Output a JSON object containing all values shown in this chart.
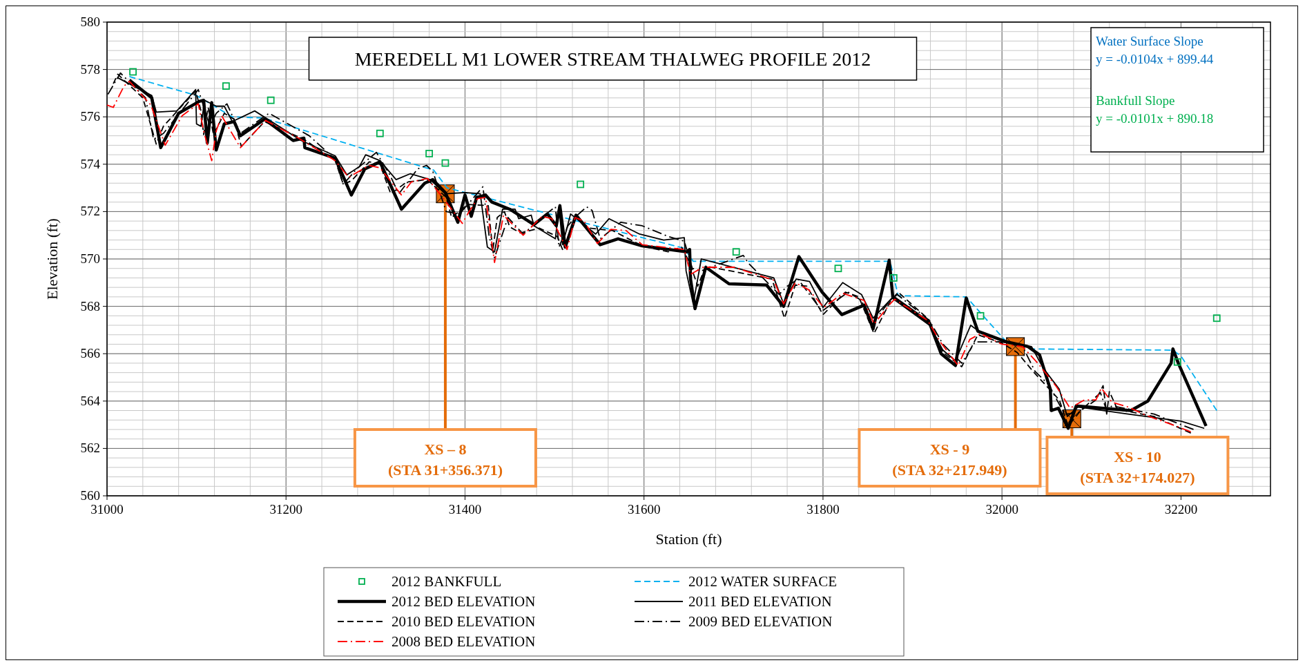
{
  "chart_data": {
    "type": "line",
    "title": "MEREDELL M1 LOWER STREAM THALWEG PROFILE 2012",
    "xlabel": "Station (ft)",
    "ylabel": "Elevation (ft)",
    "xlim": [
      31000,
      32300
    ],
    "xticks": [
      31000,
      31200,
      31400,
      31600,
      31800,
      32000,
      32200
    ],
    "ylim": [
      560,
      580
    ],
    "yticks": [
      560,
      562,
      564,
      566,
      568,
      570,
      572,
      574,
      576,
      578,
      580
    ],
    "grid": true,
    "legend": "bottom",
    "annotations": [
      "Water Surface Slope\ny = -0.0104x + 899.44",
      "Bankfull Slope\ny = -0.0101x + 890.18",
      {
        "text": "XS – 8\n(STA 31+356.371)",
        "x": 31378,
        "y": 572.75
      },
      {
        "text": "XS - 9\n(STA 32+217.949)",
        "x": 32015,
        "y": 566.3
      },
      {
        "text": "XS - 10\n(STA 32+174.027)",
        "x": 32078,
        "y": 563.25
      }
    ],
    "series": [
      {
        "name": "2012 BANKFULL",
        "type": "scatter",
        "marker": "square",
        "color": "#00b050",
        "x": [
          31029,
          31133,
          31183,
          31305,
          31360,
          31378,
          31529,
          31703,
          31817,
          31879,
          31976,
          32196,
          32240
        ],
        "values": [
          577.9,
          577.3,
          576.7,
          575.3,
          574.45,
          574.05,
          573.15,
          570.3,
          569.6,
          569.2,
          567.6,
          565.65,
          567.5
        ]
      },
      {
        "name": "2012 WATER SURFACE",
        "line_style": "dashed",
        "color": "#00b0f0",
        "x": [
          31025,
          31100,
          31140,
          31175,
          31365,
          31380,
          31645,
          31655,
          31875,
          31884,
          31960,
          32005,
          32035,
          32191,
          32200,
          32240
        ],
        "values": [
          577.7,
          576.9,
          576.0,
          575.95,
          573.75,
          573.0,
          570.45,
          569.9,
          569.9,
          568.45,
          568.4,
          566.5,
          566.2,
          566.15,
          565.9,
          563.6
        ]
      },
      {
        "name": "2012 BED ELEVATION",
        "line_style": "solid",
        "color": "#000000",
        "x": [
          31025,
          31050,
          31060,
          31080,
          31103,
          31108,
          31112,
          31117,
          31122,
          31131,
          31142,
          31149,
          31176,
          31208,
          31220,
          31221,
          31255,
          31273,
          31288,
          31305,
          31329,
          31355,
          31364,
          31378,
          31392,
          31400,
          31407,
          31413,
          31423,
          31430,
          31450,
          31477,
          31492,
          31502,
          31506,
          31512,
          31524,
          31551,
          31571,
          31598,
          31648,
          31651,
          31652,
          31657,
          31669,
          31695,
          31737,
          31756,
          31773,
          31799,
          31821,
          31846,
          31856,
          31874,
          31878,
          31919,
          31932,
          31948,
          31960,
          31973,
          32005,
          32029,
          32042,
          32054,
          32055,
          32063,
          32074,
          32083,
          32111,
          32144,
          32163,
          32189,
          32191,
          32197,
          32228
        ],
        "values": [
          577.55,
          576.8,
          574.7,
          576.15,
          576.65,
          576.7,
          574.9,
          576.6,
          574.6,
          575.7,
          575.8,
          575.2,
          575.9,
          575.0,
          575.1,
          574.7,
          574.25,
          572.7,
          573.8,
          574.1,
          572.1,
          573.2,
          573.35,
          572.8,
          571.55,
          572.7,
          571.8,
          572.6,
          572.7,
          572.4,
          572.1,
          571.45,
          571.9,
          571.4,
          572.25,
          570.5,
          571.85,
          570.6,
          570.85,
          570.55,
          570.3,
          570.4,
          569.15,
          567.9,
          569.65,
          568.95,
          568.9,
          568.0,
          570.1,
          568.6,
          567.65,
          568.05,
          567.05,
          569.95,
          568.4,
          567.3,
          566.0,
          565.5,
          568.35,
          566.95,
          566.5,
          566.3,
          565.95,
          564.5,
          563.6,
          563.7,
          562.85,
          563.8,
          563.7,
          563.6,
          564.0,
          565.6,
          566.2,
          565.6,
          562.95
        ]
      },
      {
        "name": "2011 BED ELEVATION",
        "line_style": "solid",
        "color": "#000000",
        "x": [
          31012,
          31050,
          31055,
          31078,
          31099,
          31100,
          31105,
          31109,
          31122,
          31131,
          31140,
          31165,
          31217,
          31255,
          31268,
          31282,
          31289,
          31305,
          31323,
          31339,
          31361,
          31378,
          31400,
          31417,
          31425,
          31433,
          31442,
          31456,
          31460,
          31474,
          31477,
          31501,
          31505,
          31509,
          31518,
          31546,
          31561,
          31595,
          31622,
          31645,
          31647,
          31655,
          31664,
          31745,
          31756,
          31770,
          31785,
          31800,
          31822,
          31843,
          31856,
          31877,
          31919,
          31934,
          31948,
          31965,
          31974,
          32005,
          32033,
          32046,
          32064,
          32073,
          32085,
          32141,
          32200,
          32226
        ],
        "values": [
          577.65,
          576.9,
          576.2,
          576.25,
          577.15,
          575.7,
          575.6,
          576.7,
          576.45,
          576.45,
          575.8,
          576.25,
          575.0,
          574.35,
          573.55,
          573.9,
          574.4,
          574.15,
          573.35,
          573.6,
          573.35,
          572.75,
          572.8,
          572.75,
          570.5,
          570.3,
          572.1,
          572.1,
          571.7,
          571.85,
          571.4,
          570.85,
          572.2,
          570.6,
          571.9,
          571.05,
          571.7,
          571.05,
          570.8,
          570.9,
          569.5,
          568.1,
          570.0,
          569.2,
          568.1,
          569.15,
          569.05,
          567.95,
          569.0,
          568.5,
          567.5,
          568.35,
          567.2,
          566.15,
          565.7,
          567.2,
          566.95,
          566.5,
          566.3,
          565.4,
          564.5,
          563.35,
          563.75,
          563.45,
          563.15,
          562.85
        ]
      },
      {
        "name": "2010 BED ELEVATION",
        "line_style": "dashed",
        "color": "#000000",
        "x": [
          31007,
          31012,
          31040,
          31055,
          31063,
          31099,
          31105,
          31108,
          31113,
          31119,
          31131,
          31142,
          31150,
          31176,
          31220,
          31255,
          31264,
          31273,
          31293,
          31305,
          31317,
          31335,
          31358,
          31379,
          31385,
          31403,
          31426,
          31431,
          31436,
          31444,
          31450,
          31462,
          31483,
          31503,
          31509,
          31524,
          31539,
          31565,
          31598,
          31627,
          31642,
          31651,
          31660,
          31669,
          31716,
          31743,
          31757,
          31769,
          31782,
          31800,
          31825,
          31840,
          31857,
          31875,
          31884,
          31918,
          31934,
          31955,
          31973,
          32000,
          32017,
          32036,
          32064,
          32074,
          32088,
          32105,
          32113,
          32117,
          32120,
          32129,
          32170,
          32211
        ],
        "values": [
          577.4,
          577.8,
          576.8,
          574.85,
          575.6,
          577.1,
          576.25,
          575.25,
          576.4,
          575.25,
          576.15,
          575.9,
          574.75,
          575.8,
          575.05,
          574.15,
          573.15,
          573.3,
          574.1,
          574.0,
          572.75,
          573.25,
          573.35,
          572.6,
          571.75,
          572.3,
          572.25,
          570.35,
          571.75,
          572.0,
          571.35,
          571.1,
          571.3,
          570.95,
          570.4,
          571.75,
          571.3,
          571.2,
          570.55,
          570.3,
          570.5,
          569.85,
          568.85,
          569.7,
          569.35,
          569.15,
          567.5,
          568.9,
          568.85,
          567.65,
          568.6,
          568.4,
          566.85,
          568.2,
          568.6,
          567.45,
          566.05,
          565.45,
          566.8,
          566.45,
          566.05,
          565.2,
          564.05,
          562.95,
          563.6,
          564.05,
          564.65,
          563.45,
          564.4,
          563.65,
          563.35,
          562.65
        ]
      },
      {
        "name": "2009 BED ELEVATION",
        "line_style": "dashdot",
        "color": "#000000",
        "x": [
          31001,
          31015,
          31043,
          31052,
          31063,
          31102,
          31115,
          31122,
          31134,
          31149,
          31181,
          31226,
          31255,
          31264,
          31279,
          31301,
          31316,
          31326,
          31347,
          31357,
          31364,
          31379,
          31394,
          31420,
          31427,
          31433,
          31448,
          31465,
          31489,
          31501,
          31505,
          31515,
          31524,
          31536,
          31542,
          31551,
          31574,
          31598,
          31627,
          31645,
          31654,
          31664,
          31678,
          31711,
          31716,
          31751,
          31760,
          31772,
          31799,
          31828,
          31843,
          31855,
          31875,
          31883,
          31919,
          31934,
          31955,
          31970,
          32000,
          32023,
          32037,
          32052,
          32070,
          32085,
          32110,
          32117,
          32123,
          32170,
          32214
        ],
        "values": [
          576.95,
          577.85,
          576.8,
          575.05,
          575.3,
          577.15,
          575.6,
          576.15,
          576.55,
          575.3,
          576.15,
          575.2,
          574.2,
          573.15,
          573.8,
          574.5,
          573.55,
          572.75,
          573.8,
          573.95,
          573.7,
          572.0,
          571.9,
          573.05,
          570.95,
          570.05,
          571.75,
          571.05,
          571.85,
          572.2,
          570.5,
          571.4,
          571.8,
          572.2,
          572.05,
          570.85,
          571.55,
          571.4,
          570.95,
          570.75,
          569.6,
          569.5,
          569.7,
          570.15,
          569.85,
          568.5,
          568.85,
          569.15,
          567.8,
          568.6,
          568.25,
          567.25,
          568.25,
          568.5,
          567.4,
          566.4,
          565.6,
          566.5,
          566.5,
          566.3,
          565.25,
          564.7,
          563.45,
          563.5,
          564.35,
          563.6,
          563.8,
          563.45,
          562.8
        ]
      },
      {
        "name": "2008 BED ELEVATION",
        "line_style": "dashdot",
        "color": "#ff0000",
        "x": [
          31000,
          31007,
          31019,
          31025,
          31049,
          31065,
          31084,
          31102,
          31108,
          31117,
          31122,
          31128,
          31149,
          31177,
          31214,
          31255,
          31270,
          31293,
          31305,
          31329,
          31340,
          31358,
          31376,
          31397,
          31403,
          31414,
          31423,
          31433,
          31443,
          31465,
          31486,
          31497,
          31514,
          31523,
          31533,
          31548,
          31563,
          31580,
          31598,
          31645,
          31652,
          31666,
          31701,
          31745,
          31756,
          31769,
          31784,
          31801,
          31822,
          31846,
          31857,
          31875,
          31880,
          31917,
          31931,
          31951,
          31964,
          31976,
          32000,
          32023,
          32040,
          32061,
          32076,
          32092,
          32105,
          32111,
          32123,
          32141,
          32161,
          32194,
          32211
        ],
        "values": [
          576.5,
          576.4,
          577.3,
          577.5,
          576.5,
          574.8,
          576.05,
          576.55,
          575.4,
          574.15,
          575.4,
          576.05,
          574.7,
          575.85,
          575.1,
          574.15,
          573.45,
          573.95,
          573.85,
          572.7,
          573.25,
          573.4,
          572.55,
          571.5,
          571.9,
          572.55,
          572.6,
          569.85,
          571.85,
          571.0,
          571.8,
          571.7,
          570.4,
          571.75,
          571.6,
          570.65,
          571.25,
          571.2,
          570.6,
          570.4,
          569.35,
          569.65,
          569.65,
          569.1,
          568.1,
          569.0,
          568.7,
          567.95,
          568.55,
          568.25,
          567.25,
          568.1,
          568.3,
          567.4,
          566.5,
          565.5,
          566.6,
          566.85,
          566.4,
          566.3,
          565.6,
          564.6,
          563.7,
          564.05,
          564.05,
          564.55,
          563.95,
          563.75,
          563.4,
          562.95,
          562.7
        ]
      }
    ]
  }
}
